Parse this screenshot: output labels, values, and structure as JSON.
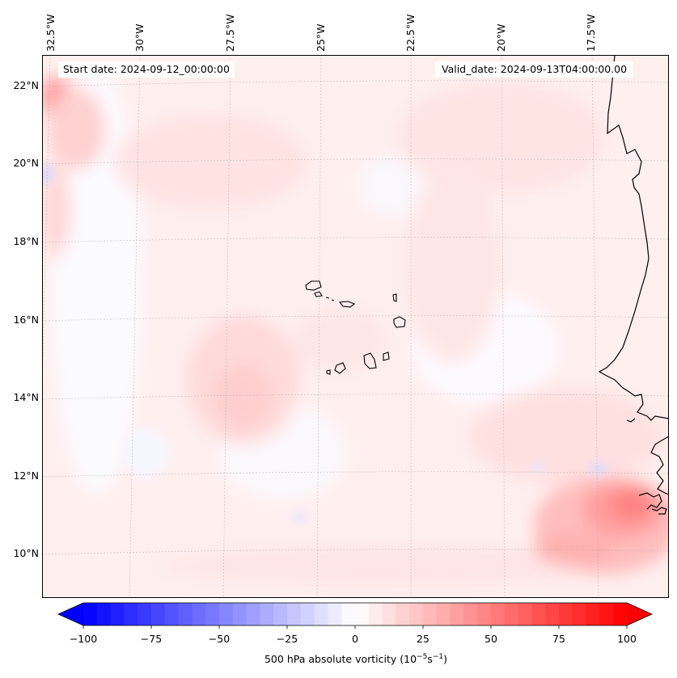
{
  "map": {
    "start_date": "Start date: 2024-09-12_00:00:00",
    "valid_date": "Valid_date: 2024-09-13T04:00:00.00",
    "lon_labels": [
      "32.5°W",
      "30°W",
      "27.5°W",
      "25°W",
      "22.5°W",
      "20°W",
      "17.5°W"
    ],
    "lat_labels": [
      "22°N",
      "20°N",
      "18°N",
      "16°N",
      "14°N",
      "12°N",
      "10°N"
    ],
    "field_description": "500 hPa absolute vorticity, mostly weak positive (light pink) with a stronger positive maximum near the West African coast around 11°N 16°W"
  },
  "colorbar": {
    "ticks": [
      "−100",
      "−75",
      "−50",
      "−25",
      "0",
      "25",
      "50",
      "75",
      "100"
    ],
    "min": -100,
    "max": 100,
    "low_color": "#0000ff",
    "mid_color": "#ffffff",
    "high_color": "#ff0000",
    "label_prefix": "500 hPa absolute vorticity (10",
    "label_exp1": "−5",
    "label_mid": "s",
    "label_exp2": "−1",
    "label_suffix": ")"
  }
}
